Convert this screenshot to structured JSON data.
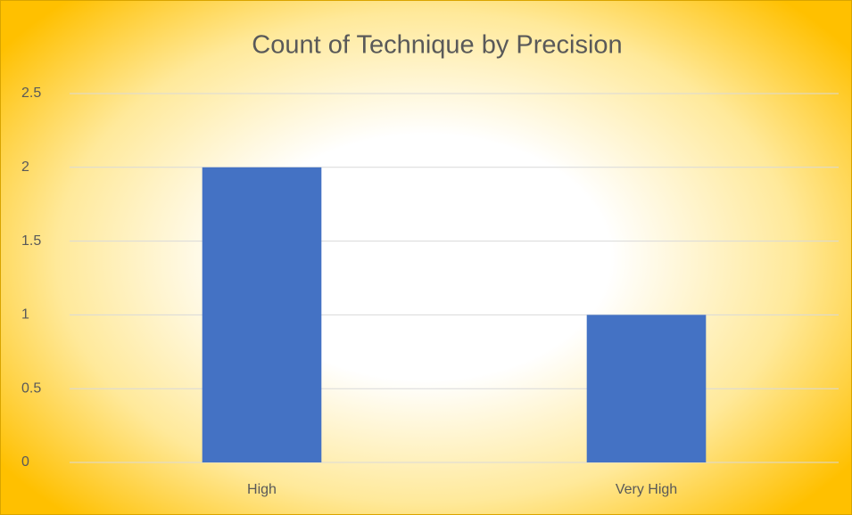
{
  "chart_data": {
    "type": "bar",
    "title": "Count of Technique by Precision",
    "categories": [
      "High",
      "Very High"
    ],
    "values": [
      2,
      1
    ],
    "color": "#4472c4",
    "ylim": [
      0,
      2.5
    ],
    "yticks": [
      0,
      0.5,
      1,
      1.5,
      2,
      2.5
    ],
    "grid": true
  }
}
